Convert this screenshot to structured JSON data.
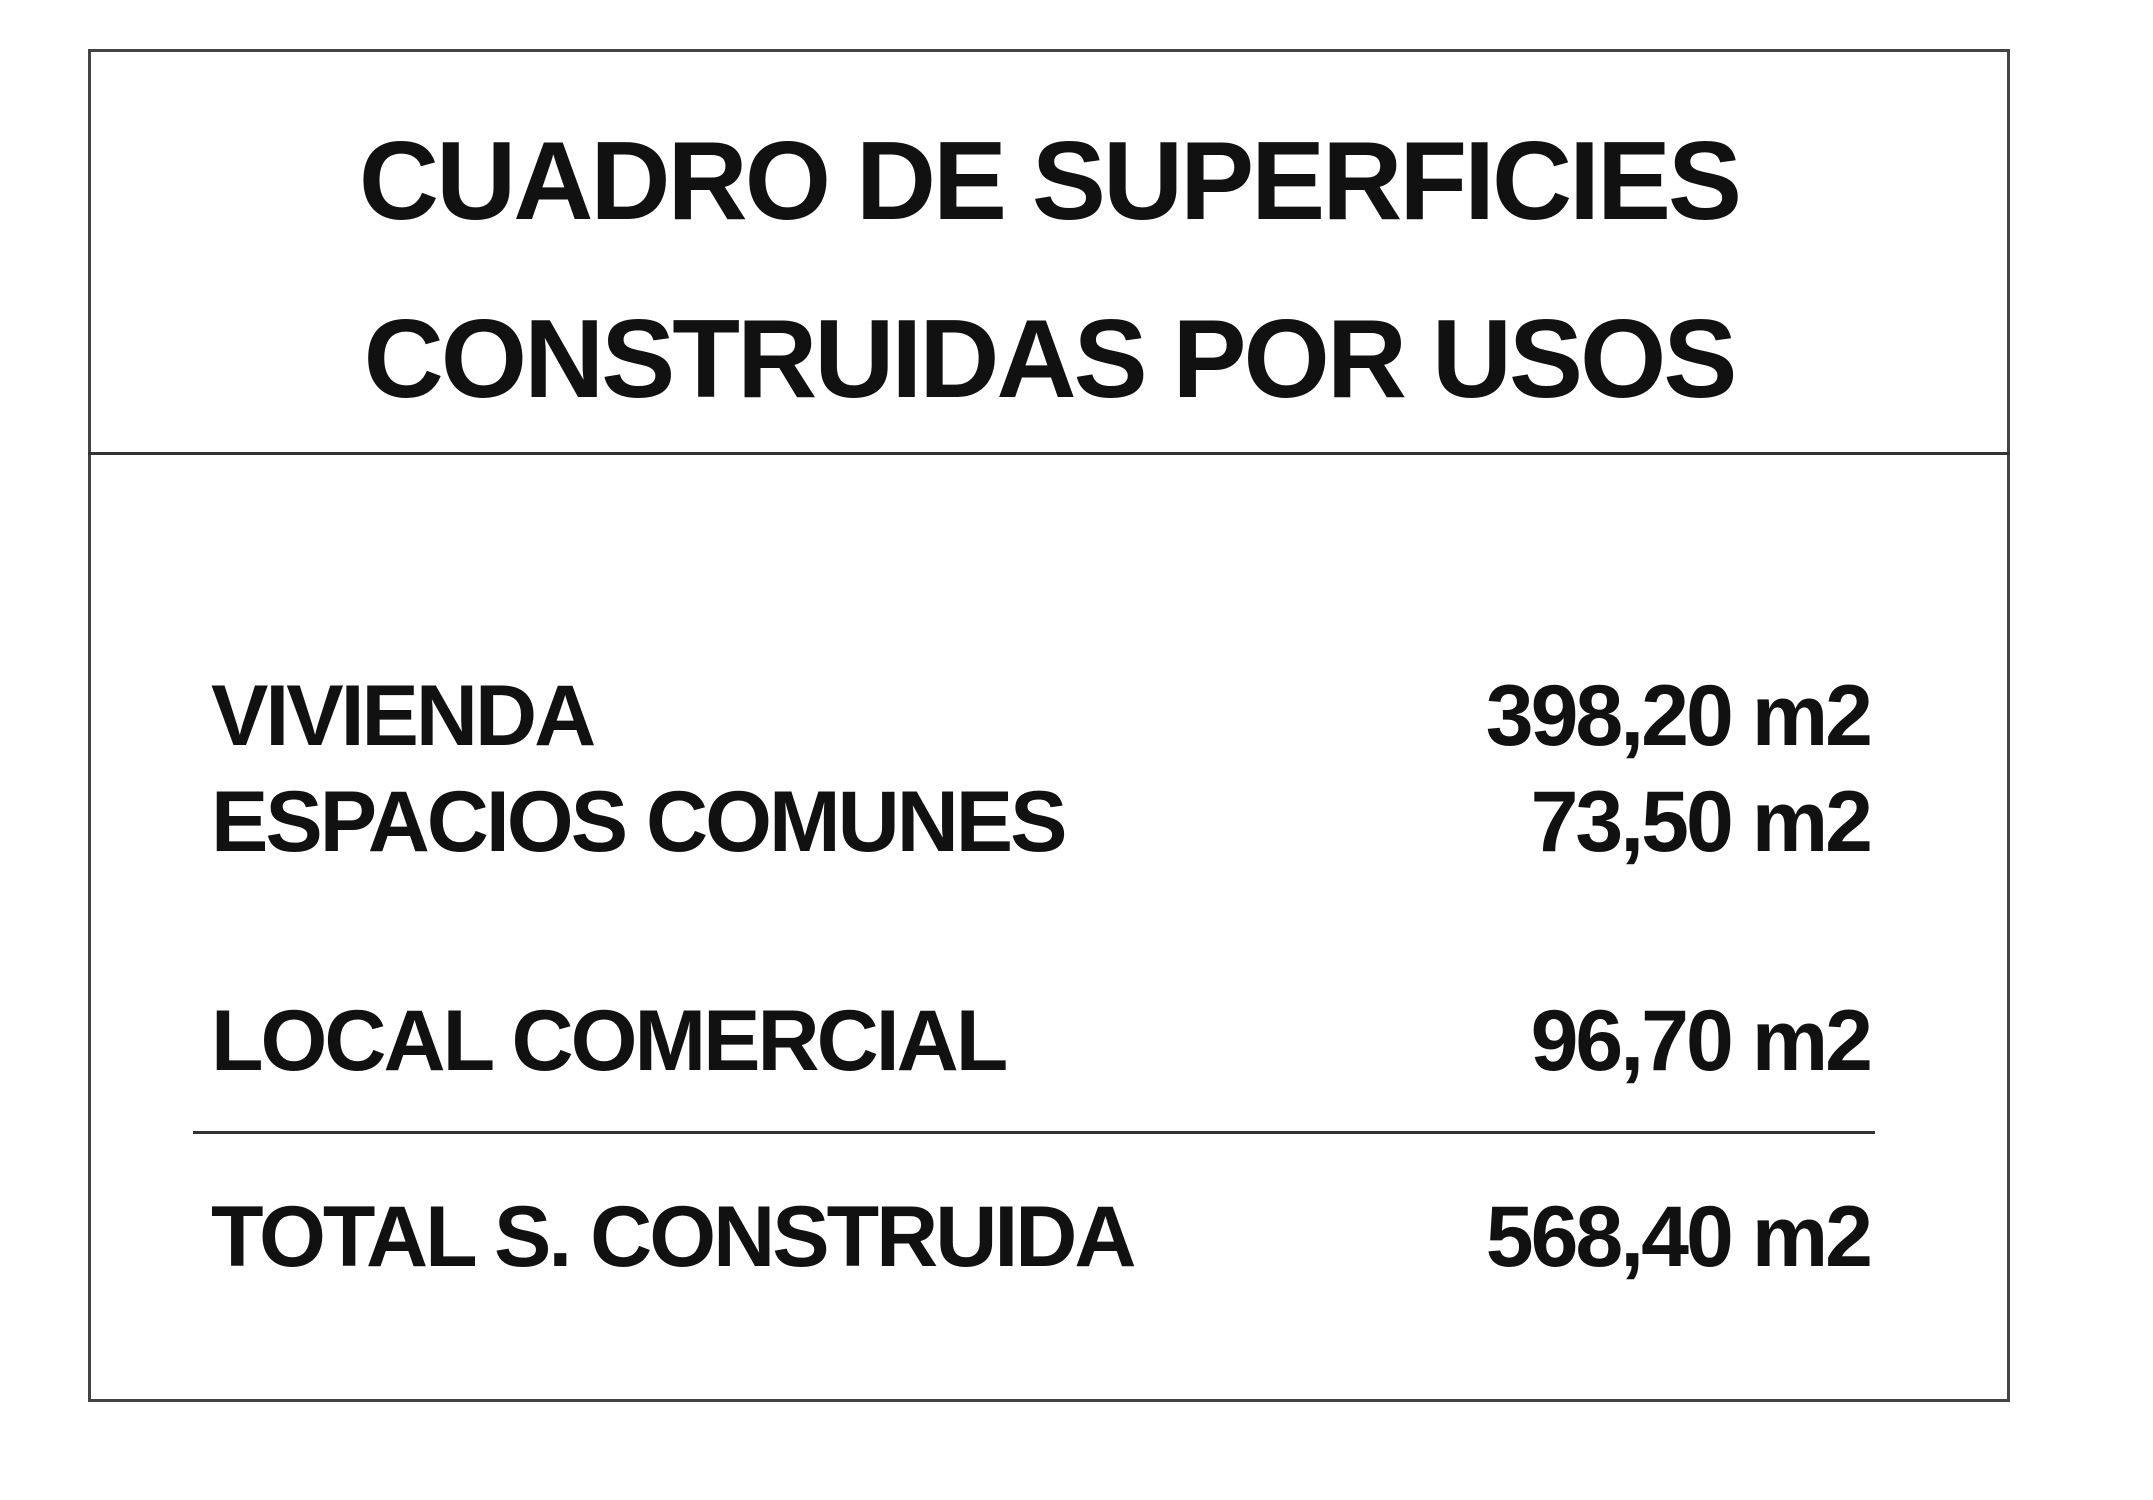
{
  "title": {
    "line1": "CUADRO DE SUPERFICIES",
    "line2": "CONSTRUIDAS POR USOS"
  },
  "rows": [
    {
      "label": "VIVIENDA",
      "value": "398,20 m2"
    },
    {
      "label": "ESPACIOS COMUNES",
      "value": "73,50 m2"
    },
    {
      "label": "LOCAL COMERCIAL",
      "value": "96,70 m2"
    }
  ],
  "total": {
    "label": "TOTAL S. CONSTRUIDA",
    "value": "568,40 m2"
  }
}
